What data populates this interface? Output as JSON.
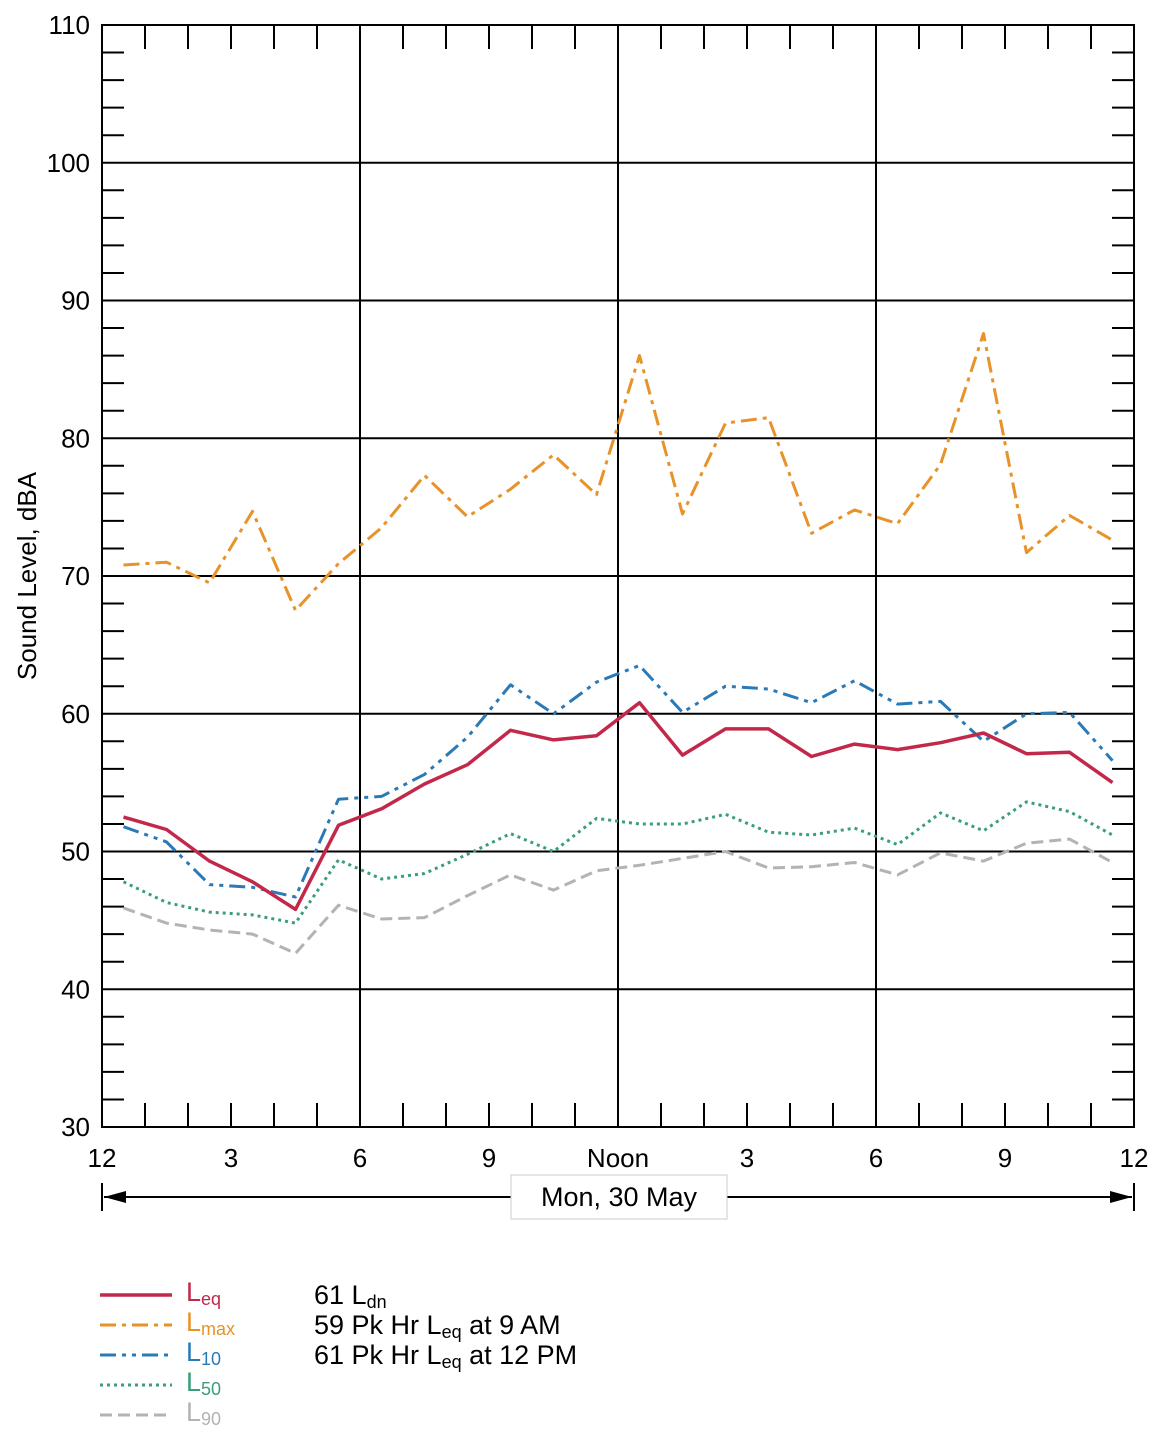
{
  "chart_data": {
    "type": "line",
    "title": "",
    "xlabel": "",
    "ylabel": "Sound Level, dBA",
    "ylim": [
      30,
      110
    ],
    "yticks": [
      "30",
      "40",
      "50",
      "60",
      "70",
      "80",
      "90",
      "100",
      "110"
    ],
    "xlim": [
      0,
      24
    ],
    "xticks": [
      {
        "x": 0,
        "label": "12"
      },
      {
        "x": 3,
        "label": "3"
      },
      {
        "x": 6,
        "label": "6"
      },
      {
        "x": 9,
        "label": "9"
      },
      {
        "x": 12,
        "label": "Noon"
      },
      {
        "x": 15,
        "label": "3"
      },
      {
        "x": 18,
        "label": "6"
      },
      {
        "x": 21,
        "label": "9"
      },
      {
        "x": 24,
        "label": "12"
      }
    ],
    "date_range_label": "Mon, 30 May",
    "grid": true,
    "x": [
      0.5,
      1.5,
      2.5,
      3.5,
      4.5,
      5.5,
      6.5,
      7.5,
      8.5,
      9.5,
      10.5,
      11.5,
      12.5,
      13.5,
      14.5,
      15.5,
      16.5,
      17.5,
      18.5,
      19.5,
      20.5,
      21.5,
      22.5,
      23.5
    ],
    "series": [
      {
        "name": "Lmax",
        "base": "L",
        "sub": "max",
        "color": "#e8922a",
        "dash": "16,6,4,6",
        "values": [
          70.8,
          71.0,
          69.5,
          74.7,
          67.5,
          70.9,
          73.5,
          77.3,
          74.3,
          76.3,
          78.8,
          75.9,
          86.0,
          74.5,
          81.1,
          81.5,
          73.1,
          74.8,
          73.8,
          78.1,
          87.6,
          71.7,
          74.4,
          72.6
        ]
      },
      {
        "name": "L10",
        "base": "L",
        "sub": "10",
        "color": "#2a7ab8",
        "dash": "16,6,4,6,4,6",
        "values": [
          51.8,
          50.7,
          47.6,
          47.4,
          46.7,
          53.8,
          54.0,
          55.6,
          58.3,
          62.1,
          60.0,
          62.3,
          63.5,
          60.1,
          62.0,
          61.8,
          60.8,
          62.4,
          60.7,
          60.9,
          58.0,
          60.0,
          60.1,
          56.6
        ]
      },
      {
        "name": "L50",
        "base": "L",
        "sub": "50",
        "color": "#3a9e7a",
        "dash": "3,4",
        "values": [
          47.8,
          46.3,
          45.6,
          45.4,
          44.8,
          49.4,
          48.0,
          48.4,
          49.8,
          51.3,
          50.0,
          52.4,
          52.0,
          52.0,
          52.7,
          51.4,
          51.2,
          51.7,
          50.5,
          52.8,
          51.5,
          53.6,
          52.9,
          51.2
        ]
      },
      {
        "name": "L90",
        "base": "L",
        "sub": "90",
        "color": "#b3b3b3",
        "dash": "12,6",
        "values": [
          45.9,
          44.8,
          44.3,
          44.0,
          42.6,
          46.1,
          45.1,
          45.2,
          46.8,
          48.3,
          47.2,
          48.6,
          49.0,
          49.5,
          50.0,
          48.8,
          48.9,
          49.2,
          48.3,
          49.9,
          49.3,
          50.6,
          50.9,
          49.2
        ]
      },
      {
        "name": "Leq",
        "base": "L",
        "sub": "eq",
        "color": "#c2284a",
        "dash": "",
        "values": [
          52.5,
          51.6,
          49.3,
          47.8,
          45.8,
          51.9,
          53.1,
          54.9,
          56.3,
          58.8,
          58.1,
          58.4,
          60.8,
          57.0,
          58.9,
          58.9,
          56.9,
          57.8,
          57.4,
          57.9,
          58.6,
          57.1,
          57.2,
          55.0
        ]
      }
    ],
    "legend_order": [
      "Leq",
      "Lmax",
      "L10",
      "L50",
      "L90"
    ],
    "legend_placement": "bottom-left"
  },
  "stats": [
    {
      "pre": "61 L",
      "sub": "dn",
      "post": ""
    },
    {
      "pre": "59 Pk Hr L",
      "sub": "eq",
      "post": " at 9 AM"
    },
    {
      "pre": "61 Pk Hr L",
      "sub": "eq",
      "post": " at 12 PM"
    }
  ]
}
